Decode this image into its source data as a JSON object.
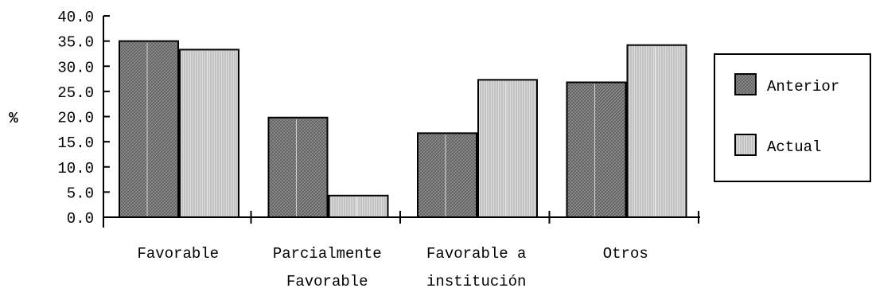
{
  "chart_data": {
    "type": "bar",
    "categories": [
      [
        "Favorable"
      ],
      [
        "Parcialmente",
        "Favorable"
      ],
      [
        "Favorable a",
        "institución"
      ],
      [
        "Otros"
      ]
    ],
    "series": [
      {
        "name": "Anterior",
        "values": [
          35.0,
          19.8,
          16.7,
          26.8
        ],
        "color": "#7a7a7a",
        "pattern": "dark-hatch"
      },
      {
        "name": "Actual",
        "values": [
          33.3,
          4.3,
          27.3,
          34.2
        ],
        "color": "#d2d2d2",
        "pattern": "light-hatch"
      }
    ],
    "ylabel": "%",
    "xlabel": "",
    "ylim": [
      0,
      40
    ],
    "yticks": [
      "0.0",
      "5.0",
      "10.0",
      "15.0",
      "20.0",
      "25.0",
      "30.0",
      "35.0",
      "40.0"
    ],
    "grid": false,
    "legend_position": "right"
  }
}
